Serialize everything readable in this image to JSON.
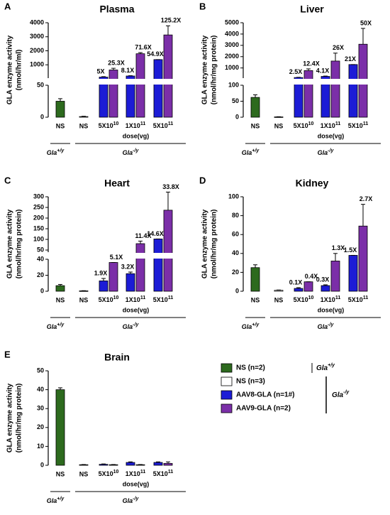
{
  "series_styles": [
    {
      "name": "NS (n=2)",
      "color": "#2d6a1e",
      "annotation_color": "#000"
    },
    {
      "name": "NS (n=3)",
      "color": "#ffffff",
      "annotation_color": "#000"
    },
    {
      "name": "AAV8-GLA (n=1#)",
      "color": "#1c1cd6",
      "annotation_color": "#1f2a60"
    },
    {
      "name": "AAV9-GLA (n=2)",
      "color": "#7b2fa8",
      "annotation_color": "#7030a0"
    }
  ],
  "legend_groups": [
    {
      "text": "Gla",
      "sup": "+/y"
    },
    {
      "text": "Gla",
      "sup": "-/y"
    }
  ],
  "chart_data": [
    {
      "letter": "A",
      "type": "bar",
      "title": "Plasma",
      "ylabel": [
        "GLA enzyme activity",
        "(nmol/hr/ml)"
      ],
      "categories": [
        "NS",
        "NS",
        {
          "text": "5X10",
          "sup": "10"
        },
        {
          "text": "1X10",
          "sup": "11"
        },
        {
          "text": "5X10",
          "sup": "11"
        }
      ],
      "xlabel": "dose(vg)",
      "groups": [
        {
          "text": "Gla",
          "sup": "+/y"
        },
        {
          "text": "Gla",
          "sup": "-/y"
        }
      ],
      "segments": [
        {
          "ylim": [
            0,
            50
          ],
          "yticks": [
            0,
            50
          ]
        },
        {
          "ylim": [
            50,
            4000
          ],
          "yticks": [
            1000,
            2000,
            3000,
            4000
          ]
        }
      ],
      "series": [
        {
          "values": [
            25,
            null,
            null,
            null,
            null
          ],
          "errors": [
            4,
            null,
            null,
            null,
            null
          ]
        },
        {
          "values": [
            null,
            1,
            null,
            null,
            null
          ],
          "errors": [
            null,
            0.5,
            null,
            null,
            null
          ]
        },
        {
          "values": [
            null,
            null,
            125,
            203,
            1373
          ],
          "errors": [
            null,
            null,
            30,
            20,
            0
          ],
          "annotations": [
            null,
            null,
            "5X",
            "8.1X",
            "54.9X"
          ]
        },
        {
          "values": [
            null,
            null,
            633,
            1790,
            3130
          ],
          "errors": [
            null,
            null,
            120,
            80,
            650
          ],
          "annotations": [
            null,
            null,
            "25.3X",
            "71.6X",
            "125.2X"
          ]
        }
      ]
    },
    {
      "letter": "B",
      "type": "bar",
      "title": "Liver",
      "ylabel": [
        "GLA enzyme activity",
        "(nmol/hr/mg protein)"
      ],
      "categories": [
        "NS",
        "NS",
        {
          "text": "5X10",
          "sup": "10"
        },
        {
          "text": "1X10",
          "sup": "11"
        },
        {
          "text": "5X10",
          "sup": "11"
        }
      ],
      "xlabel": "dose(vg)",
      "groups": [
        {
          "text": "Gla",
          "sup": "+/y"
        },
        {
          "text": "Gla",
          "sup": "-/y"
        }
      ],
      "segments": [
        {
          "ylim": [
            0,
            100
          ],
          "yticks": [
            0,
            50,
            100
          ]
        },
        {
          "ylim": [
            100,
            5000
          ],
          "yticks": [
            1000,
            2000,
            3000,
            4000,
            5000
          ]
        }
      ],
      "series": [
        {
          "values": [
            62,
            null,
            null,
            null,
            null
          ],
          "errors": [
            8,
            null,
            null,
            null,
            null
          ]
        },
        {
          "values": [
            null,
            1,
            null,
            null,
            null
          ],
          "errors": [
            null,
            0.5,
            null,
            null,
            null
          ]
        },
        {
          "values": [
            null,
            null,
            155,
            254,
            1302
          ],
          "errors": [
            null,
            null,
            20,
            30,
            0
          ],
          "annotations": [
            null,
            null,
            "2.5X",
            "4.1X",
            "21X"
          ]
        },
        {
          "values": [
            null,
            null,
            769,
            1612,
            3100
          ],
          "errors": [
            null,
            null,
            150,
            700,
            1400
          ],
          "annotations": [
            null,
            null,
            "12.4X",
            "26X",
            "50X"
          ]
        }
      ]
    },
    {
      "letter": "C",
      "type": "bar",
      "title": "Heart",
      "ylabel": [
        "GLA enzyme activity",
        "(nmol/hr/mg protein)"
      ],
      "categories": [
        "NS",
        "NS",
        {
          "text": "5X10",
          "sup": "10"
        },
        {
          "text": "1X10",
          "sup": "11"
        },
        {
          "text": "5X10",
          "sup": "11"
        }
      ],
      "xlabel": "dose(vg)",
      "groups": [
        {
          "text": "Gla",
          "sup": "+/y"
        },
        {
          "text": "Gla",
          "sup": "-/y"
        }
      ],
      "segments": [
        {
          "ylim": [
            0,
            40
          ],
          "yticks": [
            0,
            20,
            40
          ]
        },
        {
          "ylim": [
            40,
            300
          ],
          "yticks": [
            50,
            100,
            150,
            200,
            250,
            300
          ]
        }
      ],
      "series": [
        {
          "values": [
            7,
            null,
            null,
            null,
            null
          ],
          "errors": [
            1.5,
            null,
            null,
            null,
            null
          ]
        },
        {
          "values": [
            null,
            0.5,
            null,
            null,
            null
          ],
          "errors": [
            null,
            0.2,
            null,
            null,
            null
          ]
        },
        {
          "values": [
            null,
            null,
            13,
            22,
            102
          ],
          "errors": [
            null,
            null,
            3,
            2,
            0
          ],
          "annotations": [
            null,
            null,
            "1.9X",
            "3.2X",
            "14.6X"
          ]
        },
        {
          "values": [
            null,
            null,
            36,
            80,
            237
          ],
          "errors": [
            null,
            null,
            0,
            12,
            85
          ],
          "annotations": [
            null,
            null,
            "5.1X",
            "11.4X",
            "33.8X"
          ]
        }
      ]
    },
    {
      "letter": "D",
      "type": "bar",
      "title": "Kidney",
      "ylabel": [
        "GLA enzyme activity",
        "(nmol/hr/mg protein)"
      ],
      "categories": [
        "NS",
        "NS",
        {
          "text": "5X10",
          "sup": "10"
        },
        {
          "text": "1X10",
          "sup": "11"
        },
        {
          "text": "5X10",
          "sup": "11"
        }
      ],
      "xlabel": "dose(vg)",
      "groups": [
        {
          "text": "Gla",
          "sup": "+/y"
        },
        {
          "text": "Gla",
          "sup": "-/y"
        }
      ],
      "ylim": [
        0,
        100
      ],
      "yticks": [
        0,
        20,
        40,
        60,
        80,
        100
      ],
      "series": [
        {
          "values": [
            25,
            null,
            null,
            null,
            null
          ],
          "errors": [
            3,
            null,
            null,
            null,
            null
          ]
        },
        {
          "values": [
            null,
            1,
            null,
            null,
            null
          ],
          "errors": [
            null,
            0.3,
            null,
            null,
            null
          ]
        },
        {
          "values": [
            null,
            null,
            3,
            6,
            38
          ],
          "errors": [
            null,
            null,
            0.8,
            0.8,
            0
          ],
          "annotations": [
            null,
            null,
            "0.1X",
            "0.3X",
            "1.5X"
          ]
        },
        {
          "values": [
            null,
            null,
            10,
            32,
            69
          ],
          "errors": [
            null,
            null,
            0,
            8,
            23
          ],
          "annotations": [
            null,
            null,
            "0.4X",
            "1.3X",
            "2.7X"
          ]
        }
      ]
    },
    {
      "letter": "E",
      "type": "bar",
      "title": "Brain",
      "ylabel": [
        "GLA enzyme activity",
        "(nmol/hr/mg protein)"
      ],
      "categories": [
        "NS",
        "NS",
        {
          "text": "5X10",
          "sup": "10"
        },
        {
          "text": "1X10",
          "sup": "11"
        },
        {
          "text": "5X10",
          "sup": "11"
        }
      ],
      "xlabel": "dose(vg)",
      "groups": [
        {
          "text": "Gla",
          "sup": "+/y"
        },
        {
          "text": "Gla",
          "sup": "-/y"
        }
      ],
      "ylim": [
        0,
        50
      ],
      "yticks": [
        0,
        10,
        20,
        30,
        40,
        50
      ],
      "series": [
        {
          "values": [
            40,
            null,
            null,
            null,
            null
          ],
          "errors": [
            1,
            null,
            null,
            null,
            null
          ]
        },
        {
          "values": [
            null,
            0.3,
            null,
            null,
            null
          ],
          "errors": [
            null,
            0.1,
            null,
            null,
            null
          ]
        },
        {
          "values": [
            null,
            null,
            0.5,
            1.5,
            1.5
          ],
          "errors": [
            null,
            null,
            0.2,
            0.3,
            0.3
          ]
        },
        {
          "values": [
            null,
            null,
            0.3,
            0.3,
            1
          ],
          "errors": [
            null,
            null,
            0.1,
            0.1,
            0.8
          ]
        }
      ]
    }
  ]
}
